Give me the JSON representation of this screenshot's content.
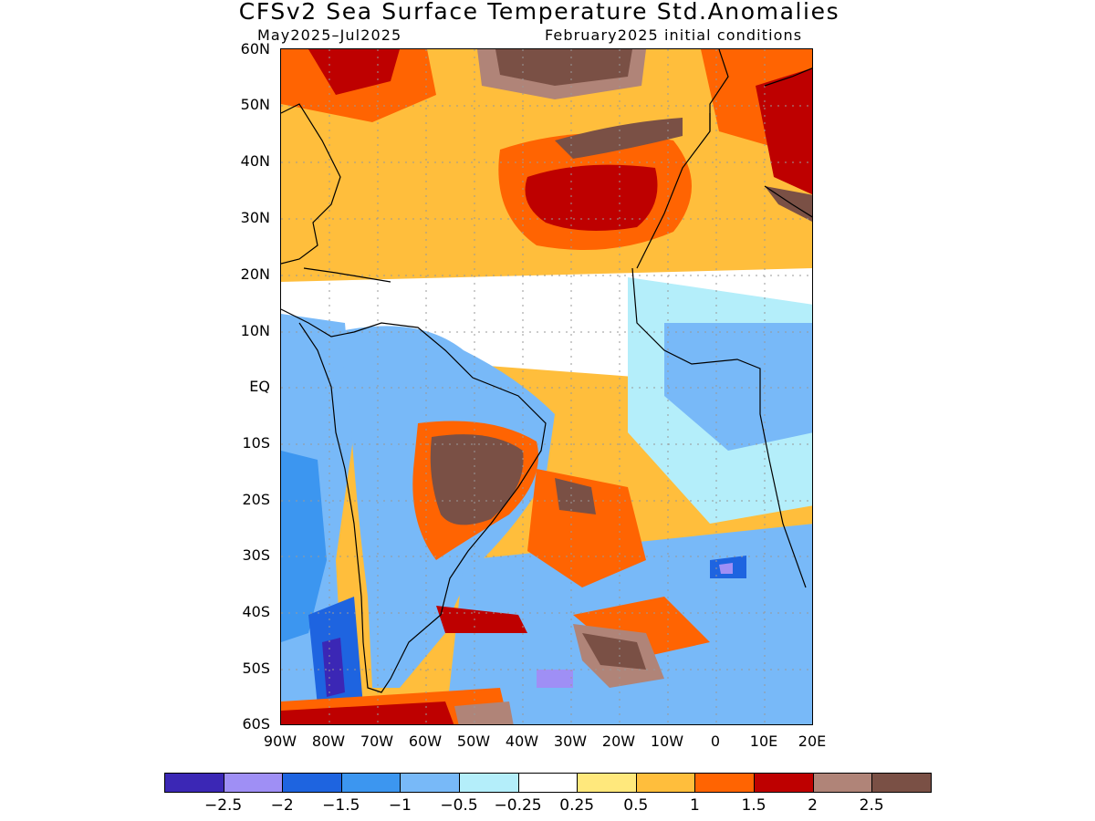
{
  "title": "CFSv2 Sea Surface Temperature Std.Anomalies",
  "subtitle_left": "May2025–Jul2025",
  "subtitle_right": "February2025 initial conditions",
  "lat_labels": [
    "60N",
    "50N",
    "40N",
    "30N",
    "20N",
    "10N",
    "EQ",
    "10S",
    "20S",
    "30S",
    "40S",
    "50S",
    "60S"
  ],
  "lon_labels": [
    "90W",
    "80W",
    "70W",
    "60W",
    "50W",
    "40W",
    "30W",
    "20W",
    "10W",
    "0",
    "10E",
    "20E"
  ],
  "colorbar": {
    "colors": [
      "#3b27b5",
      "#9f8ff5",
      "#1e64e0",
      "#3c96f0",
      "#78b9f8",
      "#b4eefa",
      "#ffffff",
      "#ffe87c",
      "#ffbe3c",
      "#ff6402",
      "#be0000",
      "#b08478",
      "#7a5045"
    ],
    "labels": [
      "−2.5",
      "−2",
      "−1.5",
      "−1",
      "−0.5",
      "−0.25",
      "0.25",
      "0.5",
      "1",
      "1.5",
      "2",
      "2.5"
    ]
  },
  "colors": {
    "land_gray": "#7a5045",
    "north_warm": "#ff6402",
    "south_cool": "#78b9f8"
  }
}
